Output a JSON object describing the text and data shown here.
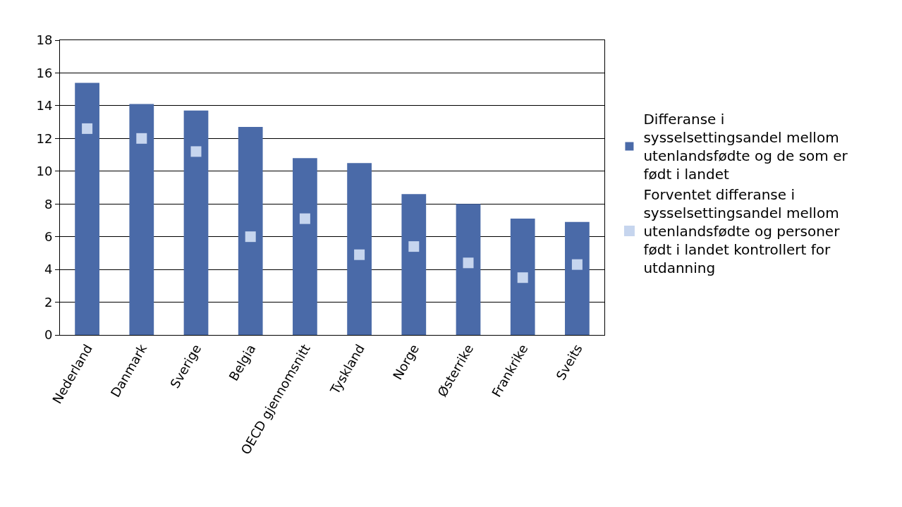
{
  "chart_data": {
    "type": "bar",
    "categories": [
      "Nederland",
      "Danmark",
      "Sverige",
      "Belgia",
      "OECD gjennomsnitt",
      "Tyskland",
      "Norge",
      "Østerrike",
      "Frankrike",
      "Sveits"
    ],
    "series": [
      {
        "name": "Differanse i sysselsettingsandel mellom utenlandsfødte og de som er født i landet",
        "color": "#4a6aa8",
        "values": [
          15.4,
          14.1,
          13.7,
          12.7,
          10.8,
          10.5,
          8.6,
          8.0,
          7.1,
          6.9
        ]
      },
      {
        "name": "Forventet differanse i sysselsettingsandel mellom utenlandsfødte og personer født i landet kontrollert for utdanning",
        "type": "scatter",
        "marker": "square",
        "color": "#c6d5ee",
        "values": [
          12.6,
          12.0,
          11.2,
          6.0,
          7.1,
          4.9,
          5.4,
          4.4,
          3.5,
          4.3
        ]
      }
    ],
    "ylim": [
      0,
      18
    ],
    "yticks": [
      0,
      2,
      4,
      6,
      8,
      10,
      12,
      14,
      16,
      18
    ],
    "grid": "y",
    "legend": "right"
  }
}
